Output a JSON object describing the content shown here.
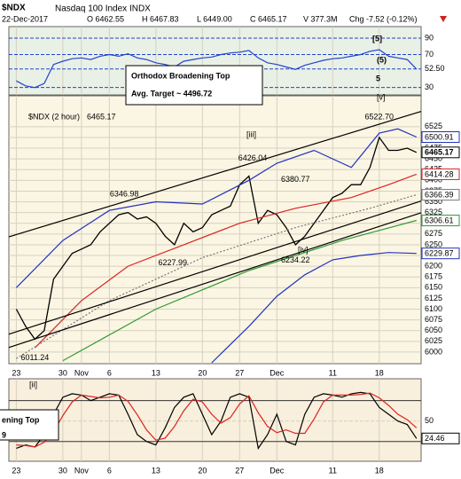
{
  "header": {
    "symbol": "$NDX",
    "name": "Nasdaq 100 Index INDX",
    "date": "22-Dec-2017",
    "open": "O 6462.55",
    "high": "H 6467.83",
    "low": "L 6449.00",
    "close": "C 6465.17",
    "volume": "V 377.3M",
    "change": "Chg -7.52 (-0.12%)"
  },
  "chart_data": [
    {
      "type": "line",
      "xlim": [
        -0.8,
        43.5
      ],
      "ylim": [
        21,
        104
      ],
      "yticks": [
        90,
        70,
        {
          "value": 52.5,
          "label": "52.50"
        },
        30
      ],
      "annotations": [
        "[5]",
        "(5)",
        "5"
      ],
      "series": [
        {
          "color": "#2244cc",
          "x": [
            0,
            1,
            2,
            3,
            4,
            5,
            6,
            7,
            8,
            9,
            10,
            11,
            12,
            13,
            14,
            15,
            16,
            17,
            18,
            19,
            20,
            21,
            22,
            23,
            24,
            25,
            26,
            27,
            28,
            29,
            30,
            31,
            32,
            33,
            34,
            35,
            36,
            37,
            38,
            39,
            40,
            41,
            42,
            43
          ],
          "values": [
            38,
            32,
            30,
            35,
            58,
            62,
            65,
            66,
            64,
            68,
            70,
            68,
            71,
            66,
            64,
            60,
            58,
            55,
            62,
            64,
            66,
            67,
            70,
            72,
            73,
            75,
            66,
            60,
            58,
            55,
            52,
            57,
            60,
            63,
            65,
            66,
            68,
            70,
            74,
            76,
            68,
            66,
            64,
            52.5
          ]
        }
      ]
    },
    {
      "type": "line",
      "title": "$NDX (2 hour)",
      "xlim": [
        -0.8,
        43.5
      ],
      "ylim": [
        5973,
        6597
      ],
      "xticks": [
        {
          "value": 0,
          "label": "23"
        },
        {
          "value": 5,
          "label": "30"
        },
        {
          "value": 7,
          "label": "Nov"
        },
        {
          "value": 10,
          "label": "6"
        },
        {
          "value": 15,
          "label": "13"
        },
        {
          "value": 20,
          "label": "20"
        },
        {
          "value": 24,
          "label": "27"
        },
        {
          "value": 28,
          "label": "Dec"
        },
        {
          "value": 34,
          "label": "11"
        },
        {
          "value": 39,
          "label": "18"
        }
      ],
      "yticks": [
        6000,
        6025,
        6050,
        6075,
        6100,
        6125,
        6150,
        6175,
        6200,
        6225,
        6250,
        6275,
        6300,
        6325,
        6350,
        6375,
        6400,
        6425,
        6450,
        6475,
        6500,
        6525
      ],
      "annotations": [
        "[v]",
        "[iii]",
        "[iv]",
        "Orthodox Broadening Top",
        "Avg. Target ~ 4496.72"
      ],
      "price_labels": [
        "6011.24",
        "6346.98",
        "6227.99",
        "6426.04",
        "6380.77",
        "6234.22",
        "6522.70"
      ],
      "series": [
        {
          "color": "#000000",
          "tag": true,
          "x": [
            0,
            1,
            2,
            3,
            4,
            5,
            6,
            7,
            8,
            9,
            10,
            11,
            12,
            13,
            14,
            15,
            16,
            17,
            18,
            19,
            20,
            21,
            22,
            23,
            24,
            25,
            26,
            27,
            28,
            29,
            30,
            31,
            32,
            33,
            34,
            35,
            36,
            37,
            38,
            39,
            40,
            41,
            42,
            43
          ],
          "values": [
            6100,
            6060,
            6030,
            6050,
            6170,
            6200,
            6230,
            6240,
            6250,
            6280,
            6300,
            6320,
            6325,
            6310,
            6315,
            6300,
            6270,
            6250,
            6300,
            6280,
            6290,
            6320,
            6330,
            6340,
            6390,
            6410,
            6300,
            6330,
            6320,
            6290,
            6250,
            6270,
            6300,
            6330,
            6360,
            6370,
            6390,
            6390,
            6430,
            6500,
            6470,
            6470,
            6475,
            6465.17
          ]
        },
        {
          "color": "#2233bb",
          "tag": true,
          "x": [
            0,
            5,
            10,
            15,
            20,
            25,
            28,
            32,
            36,
            39,
            41,
            43
          ],
          "values": [
            6150,
            6260,
            6330,
            6350,
            6345,
            6400,
            6440,
            6470,
            6430,
            6510,
            6520,
            6500.91
          ]
        },
        {
          "color": "#2233bb",
          "tag": true,
          "x": [
            21,
            25,
            28,
            31,
            34,
            37,
            40,
            43
          ],
          "values": [
            5975,
            6060,
            6130,
            6180,
            6215,
            6225,
            6232,
            6229.87
          ]
        },
        {
          "color": "#dd2222",
          "tag": true,
          "x": [
            2,
            7,
            12,
            18,
            24,
            30,
            36,
            40,
            43
          ],
          "values": [
            6010,
            6120,
            6200,
            6250,
            6300,
            6335,
            6360,
            6390,
            6414.28
          ]
        },
        {
          "color": "#777777",
          "style": "dotted",
          "tag": true,
          "x": [
            0,
            10,
            20,
            30,
            38,
            43
          ],
          "values": [
            5985,
            6120,
            6220,
            6290,
            6335,
            6366.39
          ]
        },
        {
          "color": "#339933",
          "tag": true,
          "x": [
            5,
            15,
            25,
            35,
            43
          ],
          "values": [
            5980,
            6100,
            6190,
            6260,
            6306.61
          ]
        },
        {
          "color": "#000000",
          "x": [
            -1.75,
            47.8
          ],
          "values": [
            6262,
            6589
          ]
        },
        {
          "color": "#000000",
          "x": [
            -1.75,
            47.8
          ],
          "values": [
            6004,
            6355
          ]
        },
        {
          "color": "#000000",
          "x": [
            -1.75,
            47.8
          ],
          "values": [
            6035,
            6382
          ]
        }
      ]
    },
    {
      "type": "line",
      "xlim": [
        -0.8,
        43.5
      ],
      "ylim": [
        -9,
        112
      ],
      "xticks": [
        {
          "value": 0,
          "label": "23"
        },
        {
          "value": 5,
          "label": "30"
        },
        {
          "value": 7,
          "label": "Nov"
        },
        {
          "value": 10,
          "label": "6"
        },
        {
          "value": 15,
          "label": "13"
        },
        {
          "value": 20,
          "label": "20"
        },
        {
          "value": 24,
          "label": "27"
        },
        {
          "value": 28,
          "label": "Dec"
        },
        {
          "value": 34,
          "label": "11"
        },
        {
          "value": 39,
          "label": "18"
        }
      ],
      "yticks": [
        50
      ],
      "levels": [
        80,
        20
      ],
      "annotations": [
        "[ii]",
        "ening Top",
        "9"
      ],
      "series": [
        {
          "color": "#000000",
          "tag": true,
          "x": [
            0,
            1,
            2,
            3,
            4,
            5,
            6,
            7,
            8,
            9,
            10,
            11,
            12,
            13,
            14,
            15,
            16,
            17,
            18,
            19,
            20,
            21,
            22,
            23,
            24,
            25,
            26,
            27,
            28,
            29,
            30,
            31,
            32,
            33,
            34,
            35,
            36,
            37,
            38,
            39,
            40,
            41,
            42,
            43
          ],
          "values": [
            10,
            15,
            12,
            30,
            60,
            85,
            90,
            88,
            80,
            85,
            90,
            88,
            60,
            30,
            20,
            15,
            40,
            70,
            85,
            90,
            60,
            30,
            50,
            85,
            90,
            85,
            10,
            30,
            60,
            20,
            15,
            60,
            85,
            90,
            88,
            85,
            90,
            92,
            90,
            70,
            60,
            50,
            45,
            24.46
          ]
        },
        {
          "color": "#dd2222",
          "x": [
            0,
            1,
            2,
            3,
            4,
            5,
            6,
            7,
            8,
            9,
            10,
            11,
            12,
            13,
            14,
            15,
            16,
            17,
            18,
            19,
            20,
            21,
            22,
            23,
            24,
            25,
            26,
            27,
            28,
            29,
            30,
            31,
            32,
            33,
            34,
            35,
            36,
            37,
            38,
            39,
            40,
            41,
            42,
            43
          ],
          "values": [
            15,
            14,
            12,
            19,
            34,
            58,
            78,
            88,
            86,
            84,
            85,
            88,
            79,
            59,
            37,
            22,
            25,
            42,
            65,
            82,
            78,
            60,
            47,
            55,
            75,
            87,
            62,
            42,
            33,
            37,
            32,
            32,
            53,
            78,
            88,
            88,
            88,
            89,
            91,
            84,
            73,
            60,
            52,
            40
          ]
        }
      ]
    }
  ]
}
